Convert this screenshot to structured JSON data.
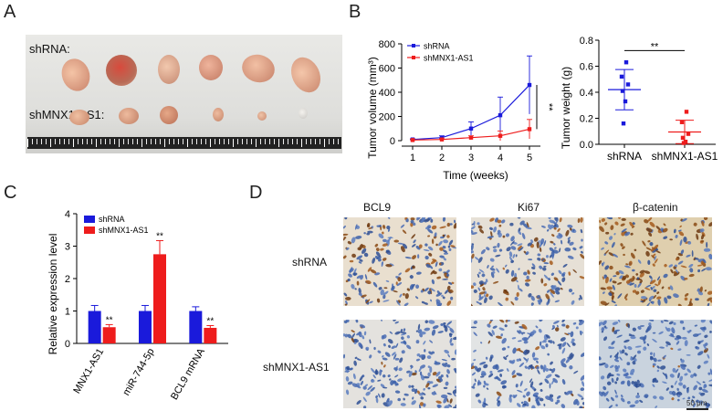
{
  "panels": {
    "a": "A",
    "b": "B",
    "c": "C",
    "d": "D"
  },
  "photo": {
    "row1_label": "shRNA:",
    "row2_label": "shMNX1-AS1:"
  },
  "colors": {
    "shrna": "#1a1adb",
    "shmnx1": "#ee1c1c"
  },
  "chart_data": [
    {
      "type": "line",
      "xlabel": "Time (weeks)",
      "ylabel": "Tumor volume (mm³)",
      "x": [
        1,
        2,
        3,
        4,
        5
      ],
      "xticks": [
        "1",
        "2",
        "3",
        "4",
        "5"
      ],
      "ylim": [
        0,
        800
      ],
      "yticks": [
        "0",
        "200",
        "400",
        "600",
        "800"
      ],
      "series": [
        {
          "name": "shRNA",
          "values": [
            10,
            25,
            100,
            210,
            460
          ],
          "err": [
            5,
            15,
            55,
            150,
            240
          ]
        },
        {
          "name": "shMNX1-AS1",
          "values": [
            5,
            10,
            25,
            40,
            95
          ],
          "err": [
            3,
            6,
            15,
            40,
            80
          ]
        }
      ],
      "significance": "**",
      "legend": "top-left"
    },
    {
      "type": "scatter",
      "ylabel": "Tumor weight (g)",
      "categories": [
        "shRNA",
        "shMNX1-AS1"
      ],
      "ylim": [
        0,
        0.8
      ],
      "yticks": [
        "0.0",
        "0.2",
        "0.4",
        "0.6",
        "0.8"
      ],
      "groups": [
        {
          "name": "shRNA",
          "points": [
            0.63,
            0.52,
            0.46,
            0.41,
            0.33,
            0.16
          ],
          "mean": 0.42,
          "sd": 0.155
        },
        {
          "name": "shMNX1-AS1",
          "points": [
            0.25,
            0.17,
            0.08,
            0.05,
            0.02,
            0.01
          ],
          "mean": 0.095,
          "sd": 0.09
        }
      ],
      "significance": "**"
    },
    {
      "type": "bar",
      "ylabel": "Relative expression level",
      "categories": [
        "MNX1-AS1",
        "miR-744-5p",
        "BCL9 mRNA"
      ],
      "ylim": [
        0,
        4
      ],
      "yticks": [
        "0",
        "1",
        "2",
        "3",
        "4"
      ],
      "series": [
        {
          "name": "shRNA",
          "values": [
            1.0,
            1.0,
            1.0
          ],
          "err": [
            0.17,
            0.17,
            0.13
          ]
        },
        {
          "name": "shMNX1-AS1",
          "values": [
            0.5,
            2.75,
            0.48
          ],
          "err": [
            0.08,
            0.42,
            0.07
          ]
        }
      ],
      "annotations": [
        "**",
        "**",
        "**"
      ],
      "legend": "top-left"
    }
  ],
  "ihc": {
    "columns": [
      "BCL9",
      "Ki67",
      "β-catenin"
    ],
    "rows": [
      "shRNA",
      "shMNX1-AS1"
    ],
    "scale_bar": "50 μm"
  }
}
